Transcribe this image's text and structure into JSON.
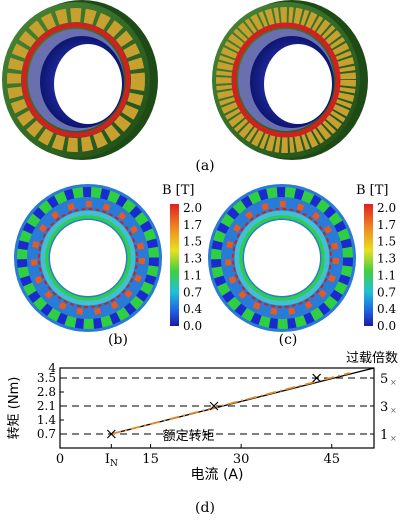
{
  "panel_labels": {
    "a": "(a)",
    "b": "(b)",
    "c": "(c)",
    "d": "(d)"
  },
  "colorbar": {
    "title": "B [T]",
    "ticks": [
      "2.0",
      "1.7",
      "1.5",
      "1.3",
      "1.1",
      "0.7",
      "0.4",
      "0.0"
    ]
  },
  "colors": {
    "housing_green": "#2f6b22",
    "coil_gold": "#c8a030",
    "rotor_blue": "#1f2fb0",
    "magnet_red": "#d02020",
    "series_black": "#000000",
    "series_orange": "#e08a2a"
  },
  "chart_data": {
    "type": "line",
    "xlabel": "电流 (A)",
    "ylabel": "转矩 (Nm)",
    "y2label": "过载倍数",
    "xlim": [
      0,
      52
    ],
    "ylim": [
      0,
      4
    ],
    "x_ticks": [
      "0",
      "IN",
      "15",
      "30",
      "45"
    ],
    "x_tick_values": [
      0,
      8.5,
      15,
      30,
      45
    ],
    "y_ticks": [
      "0.7",
      "1.4",
      "2.1",
      "2.8",
      "3.5",
      "4"
    ],
    "y_tick_values": [
      0.7,
      1.4,
      2.1,
      2.8,
      3.5,
      4.0
    ],
    "y2_ticks": [
      "1",
      "3",
      "5"
    ],
    "y2_tick_values": [
      0.7,
      2.1,
      3.5
    ],
    "annotation": "额定转矩",
    "series": [
      {
        "color": "#000000",
        "style": "solid",
        "x": [
          8.5,
          52
        ],
        "y": [
          0.7,
          4.0
        ]
      },
      {
        "color": "#e08a2a",
        "style": "dashdot",
        "x": [
          8.5,
          48
        ],
        "y": [
          0.7,
          3.75
        ]
      }
    ],
    "markers": {
      "x": [
        8.5,
        25.5,
        42.5
      ],
      "y": [
        0.7,
        2.1,
        3.5
      ]
    },
    "reference_lines": [
      0.7,
      2.1,
      3.5
    ]
  }
}
